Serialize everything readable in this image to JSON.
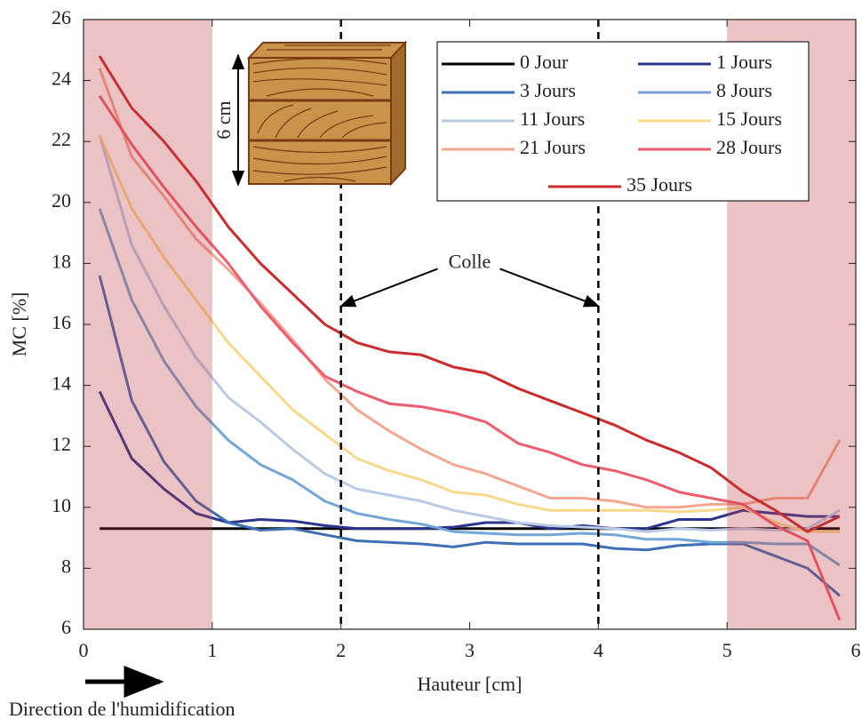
{
  "chart_data": {
    "type": "line",
    "xlabel": "Hauteur [cm]",
    "ylabel": "MC [%]",
    "x": [
      0.125,
      0.375,
      0.625,
      0.875,
      1.125,
      1.375,
      1.625,
      1.875,
      2.125,
      2.375,
      2.625,
      2.875,
      3.125,
      3.375,
      3.625,
      3.875,
      4.125,
      4.375,
      4.625,
      4.875,
      5.125,
      5.375,
      5.625,
      5.875
    ],
    "series": [
      {
        "name": "0 Jour",
        "color": "#000000",
        "values": [
          9.3,
          9.3,
          9.3,
          9.3,
          9.3,
          9.3,
          9.3,
          9.3,
          9.3,
          9.3,
          9.3,
          9.3,
          9.3,
          9.3,
          9.3,
          9.3,
          9.3,
          9.3,
          9.3,
          9.3,
          9.3,
          9.3,
          9.3,
          9.3
        ]
      },
      {
        "name": "1 Jours",
        "color": "#2b3590",
        "values": [
          13.8,
          11.6,
          10.6,
          9.8,
          9.5,
          9.6,
          9.55,
          9.4,
          9.3,
          9.3,
          9.3,
          9.35,
          9.5,
          9.5,
          9.3,
          9.4,
          9.3,
          9.3,
          9.6,
          9.6,
          9.9,
          9.8,
          9.7,
          9.7
        ]
      },
      {
        "name": "3 Jours",
        "color": "#3d6fb6",
        "values": [
          17.6,
          13.5,
          11.5,
          10.2,
          9.5,
          9.25,
          9.3,
          9.1,
          8.9,
          8.85,
          8.8,
          8.7,
          8.85,
          8.8,
          8.8,
          8.8,
          8.65,
          8.6,
          8.75,
          8.8,
          8.8,
          8.4,
          8.0,
          7.1
        ]
      },
      {
        "name": "8 Jours",
        "color": "#72a6d8",
        "values": [
          19.8,
          16.8,
          14.8,
          13.3,
          12.2,
          11.4,
          10.9,
          10.2,
          9.8,
          9.6,
          9.45,
          9.2,
          9.15,
          9.1,
          9.1,
          9.15,
          9.1,
          8.95,
          8.95,
          8.85,
          8.85,
          8.8,
          8.8,
          8.1
        ]
      },
      {
        "name": "11 Jours",
        "color": "#b9cae6",
        "values": [
          22.2,
          18.6,
          16.6,
          14.9,
          13.6,
          12.8,
          11.9,
          11.1,
          10.6,
          10.4,
          10.2,
          9.9,
          9.7,
          9.5,
          9.4,
          9.35,
          9.3,
          9.2,
          9.3,
          9.25,
          9.3,
          9.25,
          9.3,
          9.9
        ]
      },
      {
        "name": "15 Jours",
        "color": "#f8d98c",
        "values": [
          22.2,
          19.8,
          18.2,
          16.8,
          15.4,
          14.3,
          13.2,
          12.4,
          11.6,
          11.2,
          10.9,
          10.5,
          10.4,
          10.1,
          9.9,
          9.9,
          9.9,
          9.9,
          9.85,
          9.9,
          10.0,
          9.5,
          9.2,
          9.2
        ]
      },
      {
        "name": "21 Jours",
        "color": "#f5a690",
        "values": [
          24.4,
          21.5,
          20.2,
          18.8,
          17.8,
          16.7,
          15.5,
          14.2,
          13.2,
          12.5,
          11.9,
          11.4,
          11.1,
          10.7,
          10.3,
          10.3,
          10.2,
          10.0,
          10.0,
          10.1,
          10.1,
          10.3,
          10.3,
          12.2
        ]
      },
      {
        "name": "28 Jours",
        "color": "#ee5d6e",
        "values": [
          23.5,
          21.9,
          20.5,
          19.2,
          18.0,
          16.6,
          15.4,
          14.3,
          13.8,
          13.4,
          13.3,
          13.1,
          12.8,
          12.1,
          11.8,
          11.4,
          11.2,
          10.9,
          10.5,
          10.3,
          10.1,
          9.4,
          8.9,
          6.3
        ]
      },
      {
        "name": "35 Jours",
        "color": "#cc2b2b",
        "values": [
          24.8,
          23.1,
          22.0,
          20.7,
          19.2,
          18.0,
          17.0,
          16.0,
          15.4,
          15.1,
          15.0,
          14.6,
          14.4,
          13.9,
          13.5,
          13.1,
          12.7,
          12.2,
          11.8,
          11.3,
          10.5,
          9.9,
          9.2,
          9.7
        ]
      }
    ],
    "xlim": [
      0,
      6
    ],
    "xticks": [
      0,
      1,
      2,
      3,
      4,
      5,
      6
    ],
    "ylim": [
      6,
      26
    ],
    "yticks": [
      6,
      8,
      10,
      12,
      14,
      16,
      18,
      20,
      22,
      24,
      26
    ],
    "shaded_regions": [
      [
        0,
        1
      ],
      [
        5,
        6
      ]
    ],
    "shade_color": "#c0393f",
    "vlines": [
      2,
      4
    ],
    "annotation": {
      "text": "Colle",
      "x": 3,
      "y": 18.0,
      "arrows": [
        [
          2,
          16.6
        ],
        [
          4,
          16.6
        ]
      ]
    },
    "inset_label": "6 cm",
    "direction_label": "Direction de l'humidification"
  }
}
